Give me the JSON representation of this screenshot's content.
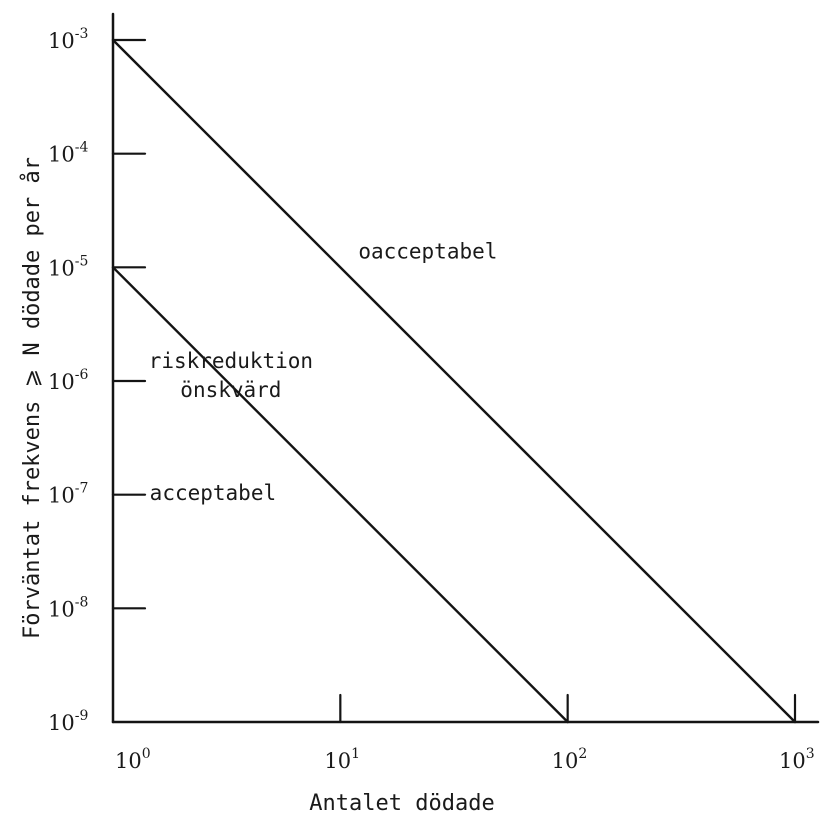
{
  "chart_data": {
    "type": "line",
    "xlabel": "Antalet dödade",
    "ylabel": "Förväntat frekvens ⩾ N dödade per år",
    "x_scale": "log",
    "y_scale": "log",
    "xlim": [
      1,
      1000
    ],
    "ylim": [
      1e-09,
      0.001
    ],
    "x_ticks": [
      {
        "value": 1,
        "base": "10",
        "exp": "0"
      },
      {
        "value": 10,
        "base": "10",
        "exp": "1"
      },
      {
        "value": 100,
        "base": "10",
        "exp": "2"
      },
      {
        "value": 1000,
        "base": "10",
        "exp": "3"
      }
    ],
    "y_ticks": [
      {
        "value": 0.001,
        "base": "10",
        "exp": "-3"
      },
      {
        "value": 0.0001,
        "base": "10",
        "exp": "-4"
      },
      {
        "value": 1e-05,
        "base": "10",
        "exp": "-5"
      },
      {
        "value": 1e-06,
        "base": "10",
        "exp": "-6"
      },
      {
        "value": 1e-07,
        "base": "10",
        "exp": "-7"
      },
      {
        "value": 1e-08,
        "base": "10",
        "exp": "-8"
      },
      {
        "value": 1e-09,
        "base": "10",
        "exp": "-9"
      }
    ],
    "series": [
      {
        "x": [
          1,
          1000
        ],
        "y": [
          0.001,
          1e-09
        ]
      },
      {
        "x": [
          1,
          100
        ],
        "y": [
          1e-05,
          1e-09
        ]
      }
    ],
    "region_labels": [
      {
        "lines": [
          "oacceptabel"
        ],
        "x": 12,
        "y": 1.2e-05
      },
      {
        "lines": [
          "riskreduktion",
          "önskvärd"
        ],
        "x": 3.3,
        "y": 1.3e-06
      },
      {
        "lines": [
          "acceptabel"
        ],
        "x": 1.45,
        "y": 9e-08
      }
    ],
    "grid": false,
    "legend": "none"
  }
}
